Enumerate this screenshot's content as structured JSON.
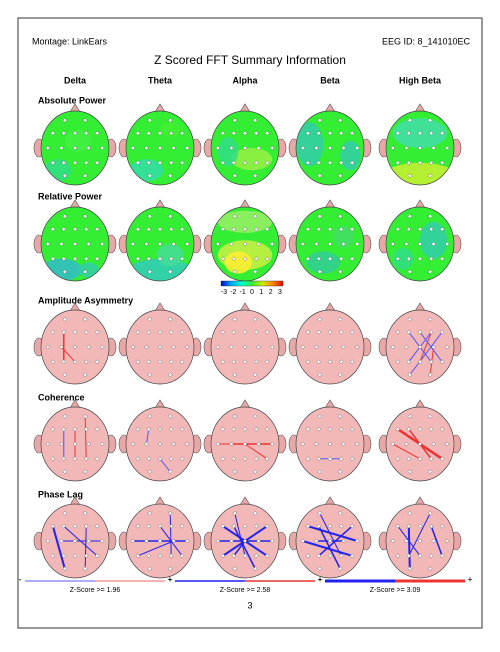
{
  "header": {
    "montage": "Montage:  LinkEars",
    "eeg_id": "EEG ID:  8_141010EC"
  },
  "title": "Z Scored FFT Summary Information",
  "bands": [
    "Delta",
    "Theta",
    "Alpha",
    "Beta",
    "High Beta"
  ],
  "sections": [
    "Absolute Power",
    "Relative Power",
    "Amplitude Asymmetry",
    "Coherence",
    "Phase Lag"
  ],
  "color_scale": {
    "labels": [
      -3,
      -2,
      -1,
      0,
      1,
      2,
      3
    ]
  },
  "legends": [
    {
      "minus": "-",
      "plus": "+",
      "label": "Z-Score >= 1.96"
    },
    {
      "minus": "-",
      "plus": "+",
      "label": "Z-Score >= 2.58"
    },
    {
      "minus": "-",
      "plus": "+",
      "label": "Z-Score >= 3.09"
    }
  ],
  "page_number": "3"
}
